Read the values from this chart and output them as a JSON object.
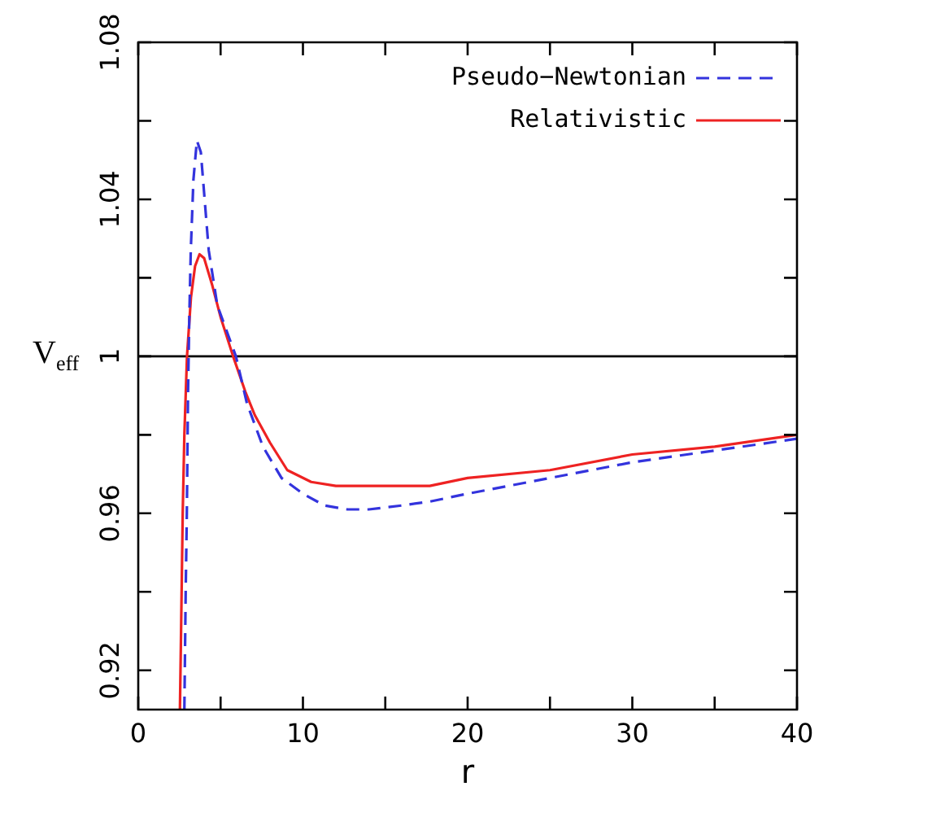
{
  "chart_data": {
    "type": "line",
    "xlabel": "r",
    "ylabel": "V$_{eff}$",
    "xlim": [
      0,
      40
    ],
    "ylim": [
      0.91,
      1.08
    ],
    "xticks": [
      0,
      {
        "value": 5,
        "label": null
      },
      10,
      {
        "value": 15,
        "label": null
      },
      20,
      {
        "value": 25,
        "label": null
      },
      30,
      {
        "value": 35,
        "label": null
      },
      40
    ],
    "yticks": [
      0.92,
      {
        "value": 0.94,
        "label": null
      },
      0.96,
      {
        "value": 0.98,
        "label": null
      },
      1,
      {
        "value": 1.02,
        "label": null
      },
      1.04,
      {
        "value": 1.06,
        "label": null
      },
      1.08
    ],
    "grid": false,
    "legend": "top right",
    "marker": "none",
    "ref_lines": [
      {
        "axis": "y",
        "value": 1,
        "color": "#000000"
      }
    ],
    "series": [
      {
        "name": "Pseudo−Newtonian",
        "color": "#3333dd",
        "line_style": "dashed",
        "x": [
          2.8,
          2.88,
          2.95,
          3.02,
          3.1,
          3.19,
          3.35,
          3.56,
          3.8,
          4.28,
          4.8,
          5.93,
          6.6,
          7.57,
          8.7,
          10,
          11.3,
          12.7,
          14,
          16,
          17.7,
          20,
          25,
          30,
          35,
          40
        ],
        "values": [
          0.91,
          0.94,
          0.96,
          0.99,
          1.01,
          1.027,
          1.045,
          1.055,
          1.052,
          1.027,
          1.013,
          1.0,
          0.988,
          0.977,
          0.969,
          0.965,
          0.962,
          0.961,
          0.961,
          0.962,
          0.963,
          0.965,
          0.969,
          0.973,
          0.976,
          0.979
        ]
      },
      {
        "name": "Relativistic",
        "color": "#ee2222",
        "line_style": "solid",
        "x": [
          2.53,
          2.6,
          2.7,
          2.8,
          2.96,
          3.2,
          3.45,
          3.72,
          4.0,
          4.5,
          5.0,
          5.76,
          6.5,
          7.08,
          8,
          9.05,
          10.5,
          12,
          13.3,
          15,
          17.7,
          20,
          25,
          30,
          35,
          40
        ],
        "values": [
          0.91,
          0.93,
          0.96,
          0.98,
          1.0,
          1.015,
          1.023,
          1.026,
          1.025,
          1.018,
          1.01,
          1.0,
          0.991,
          0.985,
          0.978,
          0.971,
          0.968,
          0.967,
          0.967,
          0.967,
          0.967,
          0.969,
          0.971,
          0.975,
          0.977,
          0.98
        ]
      }
    ]
  }
}
